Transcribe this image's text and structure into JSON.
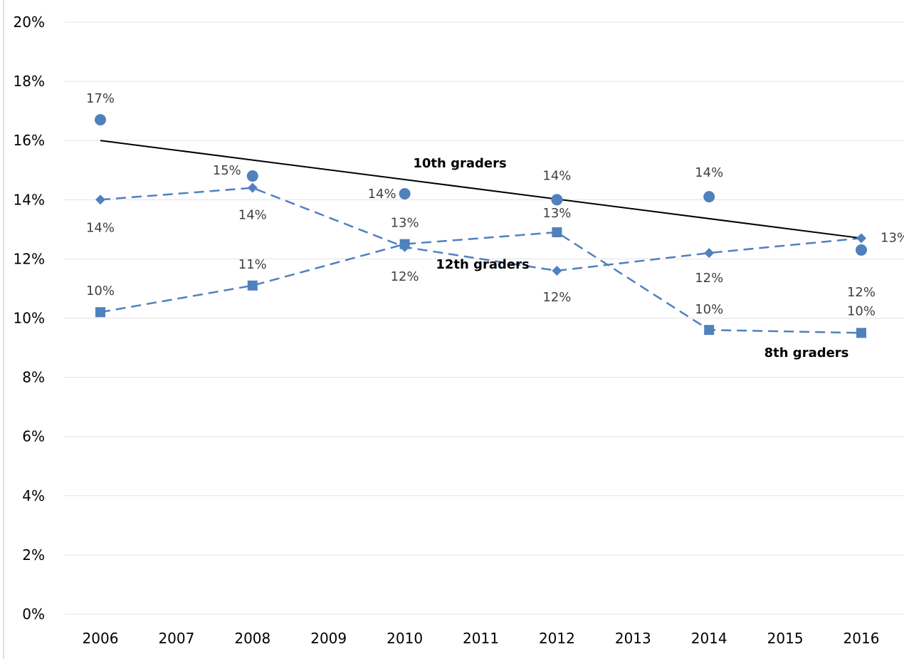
{
  "chart_data": {
    "type": "scatter",
    "x_ticks": [
      "2006",
      "2007",
      "2008",
      "2009",
      "2010",
      "2011",
      "2012",
      "2013",
      "2014",
      "2015",
      "2016"
    ],
    "y_ticks": [
      "0%",
      "2%",
      "4%",
      "6%",
      "8%",
      "10%",
      "12%",
      "14%",
      "16%",
      "18%",
      "20%"
    ],
    "xlim": [
      2006,
      2016
    ],
    "ylim": [
      0,
      20
    ],
    "grid": true,
    "colors": {
      "series": "#4f81bd",
      "trend": "#000000",
      "label": "#404040"
    },
    "series": [
      {
        "name": "10th graders",
        "marker": "circle",
        "line": "none",
        "x": [
          2006,
          2008,
          2010,
          2012,
          2014,
          2016
        ],
        "values": [
          16.7,
          14.8,
          14.2,
          14.0,
          14.1,
          12.3
        ],
        "labels": [
          "17%",
          "15%",
          "14%",
          "14%",
          "14%",
          "12%"
        ],
        "trend": {
          "x": [
            2006,
            2016
          ],
          "values": [
            16.0,
            12.7
          ]
        }
      },
      {
        "name": "12th graders",
        "marker": "diamond",
        "line": "dashed",
        "x": [
          2006,
          2008,
          2010,
          2012,
          2014,
          2016
        ],
        "values": [
          14.0,
          14.4,
          12.4,
          11.6,
          12.2,
          12.7
        ],
        "labels": [
          "14%",
          "14%",
          "12%",
          "12%",
          "12%",
          "13%"
        ]
      },
      {
        "name": "8th graders",
        "marker": "square",
        "line": "dashed",
        "x": [
          2006,
          2008,
          2010,
          2012,
          2014,
          2016
        ],
        "values": [
          10.2,
          11.1,
          12.5,
          12.9,
          9.6,
          9.5
        ],
        "labels": [
          "10%",
          "11%",
          "13%",
          "13%",
          "10%",
          "10%"
        ]
      }
    ]
  }
}
